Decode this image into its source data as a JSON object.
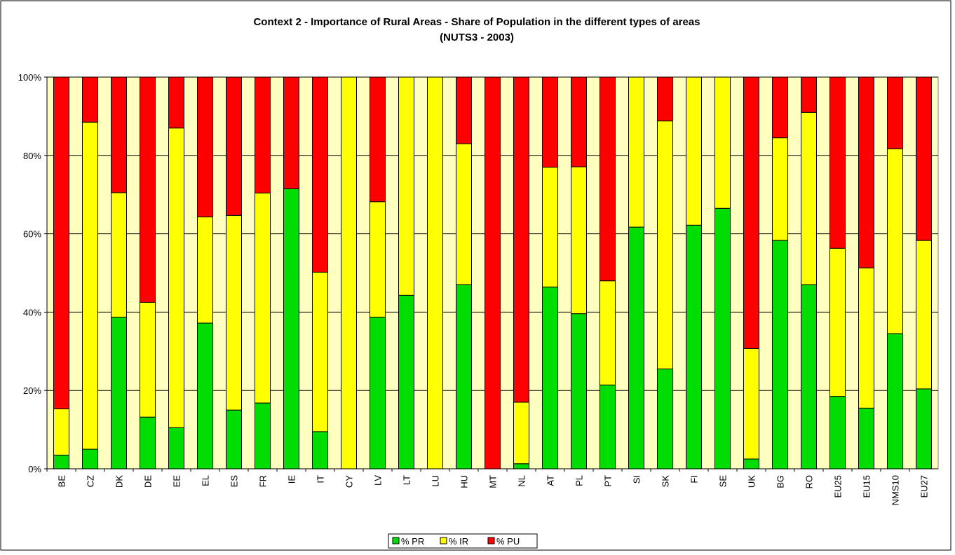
{
  "chart_data": {
    "type": "stacked_bar",
    "title": "Context 2 - Importance of Rural Areas - Share of Population in the different types of areas",
    "subtitle": "(NUTS3 - 2003)",
    "categories": [
      "BE",
      "CZ",
      "DK",
      "DE",
      "EE",
      "EL",
      "ES",
      "FR",
      "IE",
      "IT",
      "CY",
      "LV",
      "LT",
      "LU",
      "HU",
      "MT",
      "NL",
      "AT",
      "PL",
      "PT",
      "SI",
      "SK",
      "FI",
      "SE",
      "UK",
      "BG",
      "RO",
      "EU25",
      "EU15",
      "NMS10",
      "EU27"
    ],
    "series": [
      {
        "name": "% PR",
        "color": "#00dd00",
        "values": [
          3.5,
          5,
          38.7,
          13.2,
          10.5,
          37.2,
          15,
          16.8,
          71.5,
          9.5,
          0,
          38.7,
          44.3,
          0,
          47,
          0,
          1.3,
          46.4,
          39.6,
          21.4,
          61.7,
          25.5,
          62.2,
          66.5,
          2.5,
          58.3,
          47,
          18.5,
          15.5,
          34.5,
          20.4
        ]
      },
      {
        "name": "% IR",
        "color": "#ffff00",
        "values": [
          11.8,
          83.5,
          31.8,
          29.3,
          76.5,
          27.1,
          49.7,
          53.6,
          0,
          40.7,
          100,
          29.5,
          55.7,
          100,
          36,
          0,
          15.7,
          30.6,
          37.5,
          26.6,
          38.3,
          63.3,
          37.8,
          33.5,
          28.2,
          26.2,
          44,
          37.8,
          35.8,
          47.2,
          37.9
        ]
      },
      {
        "name": "% PU",
        "color": "#ff0000",
        "values": [
          84.7,
          11.5,
          29.5,
          57.5,
          13,
          35.7,
          35.3,
          29.6,
          28.5,
          49.8,
          0,
          31.8,
          0,
          0,
          17,
          100,
          83,
          23,
          22.9,
          52,
          0,
          11.2,
          0,
          0,
          69.3,
          15.5,
          9,
          43.7,
          48.7,
          18.3,
          41.7
        ]
      }
    ],
    "ylim": [
      0,
      100
    ],
    "yticks": [
      {
        "value": 0,
        "label": "0%"
      },
      {
        "value": 20,
        "label": "20%"
      },
      {
        "value": 40,
        "label": "40%"
      },
      {
        "value": 60,
        "label": "60%"
      },
      {
        "value": 80,
        "label": "80%"
      },
      {
        "value": 100,
        "label": "100%"
      }
    ],
    "grid": true,
    "plot_background": "#ffffc0",
    "legend": "bottom"
  }
}
